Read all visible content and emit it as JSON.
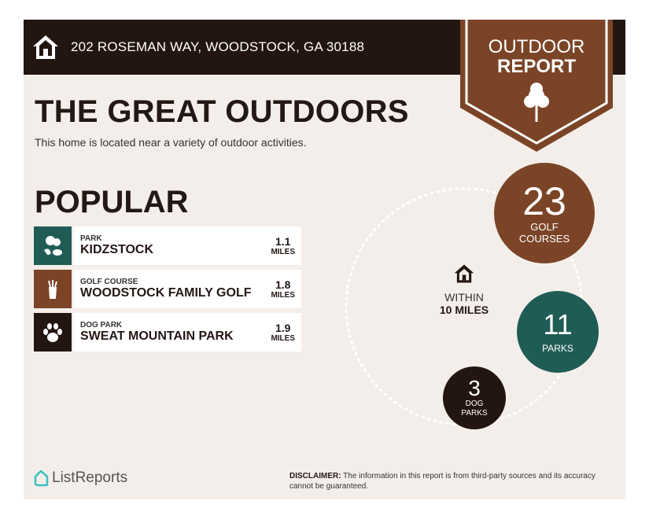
{
  "header": {
    "address": "202 ROSEMAN WAY, WOODSTOCK, GA 30188",
    "icon": "home-icon"
  },
  "badge": {
    "line1": "OUTDOOR",
    "line2": "REPORT",
    "icon": "tree-icon"
  },
  "title": "THE GREAT OUTDOORS",
  "subtitle": "This home is located near a variety of outdoor activities.",
  "popular": {
    "heading": "POPULAR",
    "items": [
      {
        "type": "PARK",
        "name": "KIDZSTOCK",
        "distance": "1.1",
        "unit": "MILES",
        "icon": "park-icon",
        "color": "#1f5c56"
      },
      {
        "type": "GOLF COURSE",
        "name": "WOODSTOCK FAMILY GOLF",
        "distance": "1.8",
        "unit": "MILES",
        "icon": "golf-bag-icon",
        "color": "#7b4427"
      },
      {
        "type": "DOG PARK",
        "name": "SWEAT MOUNTAIN PARK",
        "distance": "1.9",
        "unit": "MILES",
        "icon": "paw-icon",
        "color": "#231510"
      }
    ]
  },
  "radius": {
    "line1": "WITHIN",
    "line2": "10 MILES"
  },
  "stats": [
    {
      "count": "23",
      "label1": "GOLF",
      "label2": "COURSES",
      "color": "#7b4427"
    },
    {
      "count": "11",
      "label1": "PARKS",
      "color": "#1f5c56"
    },
    {
      "count": "3",
      "label1": "DOG",
      "label2": "PARKS",
      "color": "#231510"
    }
  ],
  "footer": {
    "logo": "ListReports",
    "disclaimer_label": "DISCLAIMER:",
    "disclaimer_text": " The information in this report is from third-party sources and its accuracy cannot be guaranteed."
  }
}
